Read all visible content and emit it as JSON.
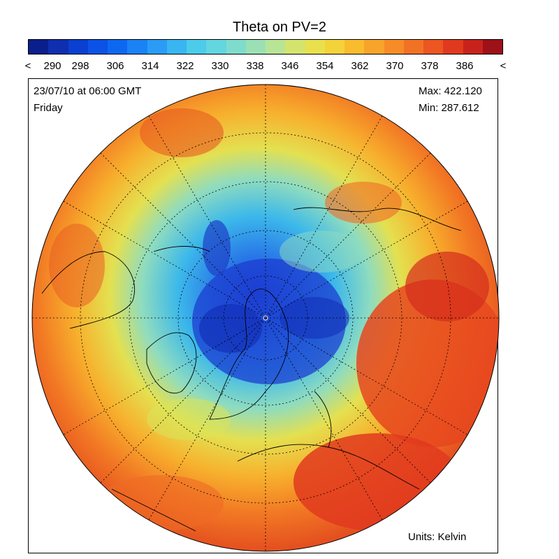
{
  "title": "Theta on PV=2",
  "colorbar": {
    "tick_labels": [
      "<",
      "290",
      "298",
      "306",
      "314",
      "322",
      "330",
      "338",
      "346",
      "354",
      "362",
      "370",
      "378",
      "386",
      "<"
    ],
    "colors": [
      "#0a1f8c",
      "#0f2fb0",
      "#0a3fd0",
      "#0b52e6",
      "#0d68f0",
      "#1a82f5",
      "#2a9cf5",
      "#39b5f2",
      "#4ccbea",
      "#63d6df",
      "#7fdccd",
      "#9be0b5",
      "#b8e496",
      "#d3e46e",
      "#e8e04c",
      "#f4d23a",
      "#f9bc2f",
      "#f8a42b",
      "#f68c28",
      "#f27225",
      "#ec5621",
      "#e03a1e",
      "#c8221c",
      "#9e1118"
    ]
  },
  "header": {
    "datetime": "23/07/10 at 06:00 GMT",
    "weekday": "Friday",
    "max": "Max: 422.120",
    "min": "Min: 287.612"
  },
  "units": "Units: Kelvin"
}
